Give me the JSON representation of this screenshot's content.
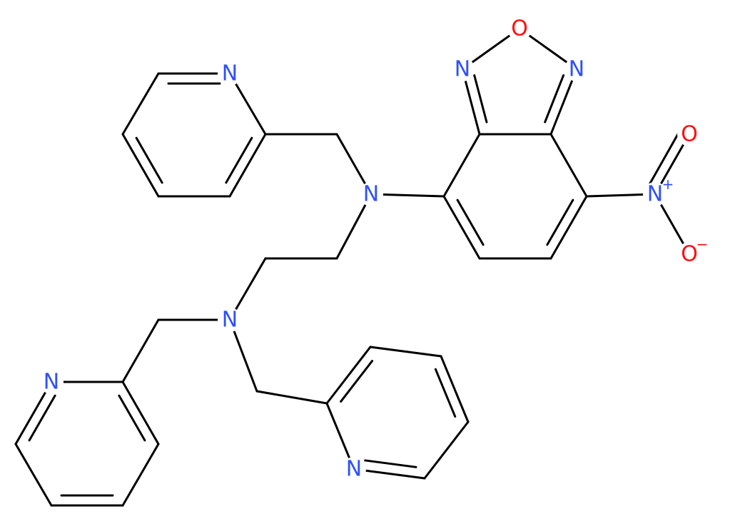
{
  "nodes": [
    {
      "label": "O"
    },
    {
      "label": "N"
    },
    {
      "label": "N"
    },
    {
      "label": "N",
      "charge": "+"
    },
    {
      "label": "O"
    },
    {
      "label": "O",
      "charge": "−"
    },
    {
      "label": "N"
    },
    {
      "label": "N"
    },
    {
      "label": "N"
    },
    {
      "label": "N"
    },
    {
      "label": "N"
    }
  ]
}
